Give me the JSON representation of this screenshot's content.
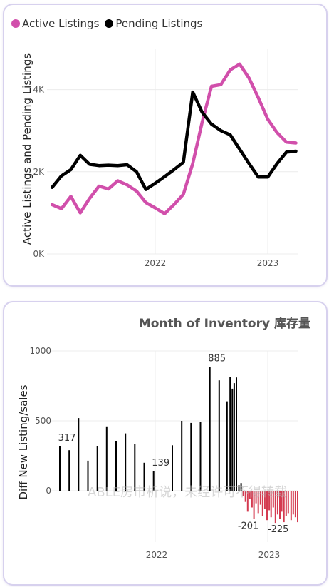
{
  "chart_data": [
    {
      "type": "line",
      "title": "",
      "ylabel": "Active Listings and Pending Listings",
      "ylim": [
        0,
        5000
      ],
      "y_ticks": [
        "0K",
        "2K",
        "4K"
      ],
      "x_ticks": [
        "2022",
        "2023"
      ],
      "legend_position": "top-left",
      "grid": true,
      "series": [
        {
          "name": "Active Listings",
          "color": "#d14fab",
          "points": [
            [
              "2021-02",
              1200
            ],
            [
              "2021-03",
              1100
            ],
            [
              "2021-04",
              1400
            ],
            [
              "2021-05",
              1000
            ],
            [
              "2021-06",
              1350
            ],
            [
              "2021-07",
              1650
            ],
            [
              "2021-08",
              1580
            ],
            [
              "2021-09",
              1780
            ],
            [
              "2021-10",
              1680
            ],
            [
              "2021-11",
              1530
            ],
            [
              "2021-12",
              1250
            ],
            [
              "2022-01",
              1120
            ],
            [
              "2022-02",
              980
            ],
            [
              "2022-03",
              1200
            ],
            [
              "2022-04",
              1450
            ],
            [
              "2022-05",
              2200
            ],
            [
              "2022-06",
              3200
            ],
            [
              "2022-07",
              4080
            ],
            [
              "2022-08",
              4120
            ],
            [
              "2022-09",
              4480
            ],
            [
              "2022-10",
              4620
            ],
            [
              "2022-11",
              4280
            ],
            [
              "2022-12",
              3800
            ],
            [
              "2023-01",
              3280
            ],
            [
              "2023-02",
              2950
            ],
            [
              "2023-03",
              2720
            ],
            [
              "2023-04",
              2700
            ]
          ]
        },
        {
          "name": "Pending Listings",
          "color": "#000000",
          "points": [
            [
              "2021-02",
              1620
            ],
            [
              "2021-03",
              1900
            ],
            [
              "2021-04",
              2050
            ],
            [
              "2021-05",
              2400
            ],
            [
              "2021-06",
              2180
            ],
            [
              "2021-07",
              2150
            ],
            [
              "2021-08",
              2160
            ],
            [
              "2021-09",
              2150
            ],
            [
              "2021-10",
              2170
            ],
            [
              "2021-11",
              2000
            ],
            [
              "2021-12",
              1570
            ],
            [
              "2022-01",
              1720
            ],
            [
              "2022-02",
              1880
            ],
            [
              "2022-03",
              2050
            ],
            [
              "2022-04",
              2230
            ],
            [
              "2022-05",
              3940
            ],
            [
              "2022-06",
              3450
            ],
            [
              "2022-07",
              3160
            ],
            [
              "2022-08",
              3000
            ],
            [
              "2022-09",
              2900
            ],
            [
              "2022-10",
              2550
            ],
            [
              "2022-11",
              2200
            ],
            [
              "2022-12",
              1870
            ],
            [
              "2023-01",
              1870
            ],
            [
              "2023-02",
              2200
            ],
            [
              "2023-03",
              2480
            ],
            [
              "2023-04",
              2500
            ]
          ]
        }
      ]
    },
    {
      "type": "bar",
      "title": "Month of Inventory 库存量",
      "ylabel": "Diff New Listing/sales",
      "ylim": [
        -300,
        1000
      ],
      "y_ticks": [
        "0",
        "500",
        "1000"
      ],
      "x_ticks": [
        "2022",
        "2023"
      ],
      "grid": true,
      "positive_color": "#000000",
      "negative_color": "#d43a50",
      "data_labels": [
        "317",
        "139",
        "885",
        "-201",
        "-225"
      ],
      "values": [
        [
          "2021-02-15",
          317
        ],
        [
          "2021-03-15",
          290
        ],
        [
          "2021-04-15",
          520
        ],
        [
          "2021-05-15",
          215
        ],
        [
          "2021-06-15",
          320
        ],
        [
          "2021-07-15",
          460
        ],
        [
          "2021-08-15",
          355
        ],
        [
          "2021-09-15",
          410
        ],
        [
          "2021-10-15",
          335
        ],
        [
          "2021-11-15",
          200
        ],
        [
          "2021-12-15",
          139
        ],
        [
          "2022-02-15",
          325
        ],
        [
          "2022-03-15",
          500
        ],
        [
          "2022-04-15",
          485
        ],
        [
          "2022-05-15",
          495
        ],
        [
          "2022-06-15",
          885
        ],
        [
          "2022-07-15",
          790
        ],
        [
          "2022-08-10",
          640
        ],
        [
          "2022-08-20",
          815
        ],
        [
          "2022-08-27",
          730
        ],
        [
          "2022-09-03",
          770
        ],
        [
          "2022-09-10",
          810
        ],
        [
          "2022-09-18",
          40
        ],
        [
          "2022-09-25",
          55
        ],
        [
          "2022-10-02",
          -40
        ],
        [
          "2022-10-09",
          -80
        ],
        [
          "2022-10-16",
          -150
        ],
        [
          "2022-10-23",
          -60
        ],
        [
          "2022-10-30",
          -120
        ],
        [
          "2022-11-06",
          -201
        ],
        [
          "2022-11-13",
          -90
        ],
        [
          "2022-11-20",
          -160
        ],
        [
          "2022-11-27",
          -100
        ],
        [
          "2022-12-04",
          -180
        ],
        [
          "2022-12-11",
          -130
        ],
        [
          "2022-12-18",
          -210
        ],
        [
          "2022-12-25",
          -140
        ],
        [
          "2023-01-01",
          -190
        ],
        [
          "2023-01-08",
          -120
        ],
        [
          "2023-01-15",
          -230
        ],
        [
          "2023-01-22",
          -170
        ],
        [
          "2023-01-29",
          -200
        ],
        [
          "2023-02-05",
          -150
        ],
        [
          "2023-02-12",
          -225
        ],
        [
          "2023-02-19",
          -180
        ],
        [
          "2023-02-26",
          -160
        ],
        [
          "2023-03-05",
          -210
        ],
        [
          "2023-03-12",
          -170
        ],
        [
          "2023-03-19",
          -190
        ],
        [
          "2023-03-26",
          -225
        ]
      ]
    }
  ],
  "watermark": "ABLE房市析说，未经许可不得转载"
}
